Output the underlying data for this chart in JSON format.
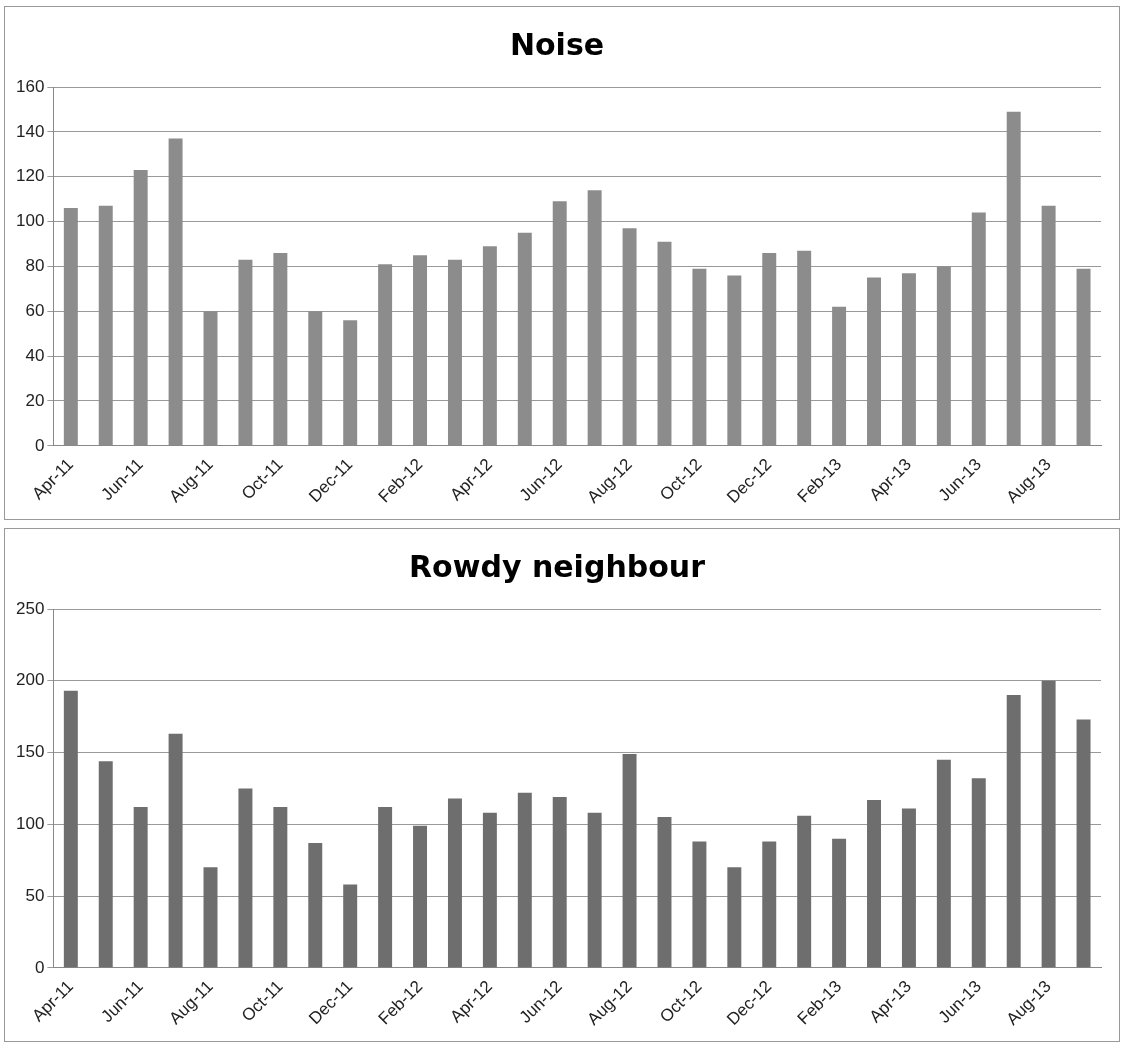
{
  "chart_data": [
    {
      "type": "bar",
      "title": "Noise",
      "categories": [
        "Apr-11",
        null,
        "Jun-11",
        null,
        "Aug-11",
        null,
        "Oct-11",
        null,
        "Dec-11",
        null,
        "Feb-12",
        null,
        "Apr-12",
        null,
        "Jun-12",
        null,
        "Aug-12",
        null,
        "Oct-12",
        null,
        "Dec-12",
        null,
        "Feb-13",
        null,
        "Apr-13",
        null,
        "Jun-13",
        null,
        "Aug-13",
        null
      ],
      "values": [
        106,
        107,
        123,
        137,
        60,
        83,
        86,
        60,
        56,
        81,
        85,
        83,
        89,
        95,
        109,
        114,
        97,
        91,
        79,
        76,
        86,
        87,
        62,
        75,
        77,
        80,
        104,
        149,
        107,
        79
      ],
      "color": "#8c8c8c",
      "ylim": [
        0,
        160
      ],
      "yticks": [
        0,
        20,
        40,
        60,
        80,
        100,
        120,
        140,
        160
      ],
      "grid": "y"
    },
    {
      "type": "bar",
      "title": "Rowdy neighbour",
      "categories": [
        "Apr-11",
        null,
        "Jun-11",
        null,
        "Aug-11",
        null,
        "Oct-11",
        null,
        "Dec-11",
        null,
        "Feb-12",
        null,
        "Apr-12",
        null,
        "Jun-12",
        null,
        "Aug-12",
        null,
        "Oct-12",
        null,
        "Dec-12",
        null,
        "Feb-13",
        null,
        "Apr-13",
        null,
        "Jun-13",
        null,
        "Aug-13",
        null
      ],
      "values": [
        193,
        144,
        112,
        163,
        70,
        125,
        112,
        87,
        58,
        112,
        99,
        118,
        108,
        122,
        119,
        108,
        149,
        105,
        88,
        70,
        88,
        106,
        90,
        117,
        111,
        145,
        132,
        190,
        200,
        173
      ],
      "color": "#6e6e6e",
      "ylim": [
        0,
        250
      ],
      "yticks": [
        0,
        50,
        100,
        150,
        200,
        250
      ],
      "grid": "y"
    }
  ]
}
